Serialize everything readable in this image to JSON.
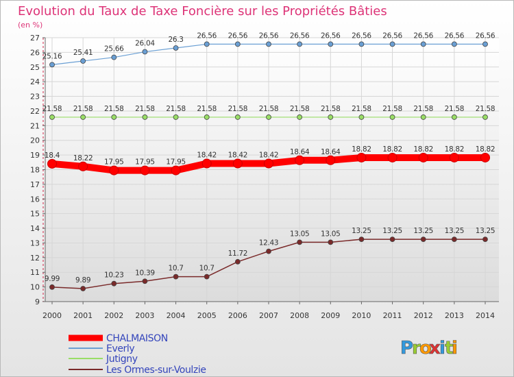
{
  "chart_data": {
    "type": "line",
    "title": "Evolution du Taux de Taxe Foncière sur les Propriétés Bâties",
    "subtitle": "(en %)",
    "x": [
      "2000",
      "2001",
      "2002",
      "2003",
      "2004",
      "2005",
      "2006",
      "2007",
      "2008",
      "2009",
      "2010",
      "2011",
      "2012",
      "2013",
      "2014"
    ],
    "yticks": [
      9,
      10,
      11,
      12,
      13,
      14,
      15,
      16,
      17,
      18,
      19,
      20,
      21,
      22,
      23,
      24,
      25,
      26,
      27
    ],
    "ylim": [
      9,
      27
    ],
    "grid": true,
    "legend_position": "bottom-left",
    "series": [
      {
        "name": "CHALMAISON",
        "color": "#ff0000",
        "labels": [
          "18.4",
          "18.22",
          "17.95",
          "17.95",
          "17.95",
          "18.42",
          "18.42",
          "18.42",
          "18.64",
          "18.64",
          "18.82",
          "18.82",
          "18.82",
          "18.82",
          "18.82"
        ],
        "values": [
          18.4,
          18.22,
          17.95,
          17.95,
          17.95,
          18.42,
          18.42,
          18.42,
          18.64,
          18.64,
          18.82,
          18.82,
          18.82,
          18.82,
          18.82
        ]
      },
      {
        "name": "Everly",
        "color": "#6a9fd4",
        "labels": [
          "25.16",
          "25.41",
          "25.66",
          "26.04",
          "26.3",
          "26.56",
          "26.56",
          "26.56",
          "26.56",
          "26.56",
          "26.56",
          "26.56",
          "26.56",
          "26.56",
          "26.56"
        ],
        "values": [
          25.16,
          25.41,
          25.66,
          26.04,
          26.3,
          26.56,
          26.56,
          26.56,
          26.56,
          26.56,
          26.56,
          26.56,
          26.56,
          26.56,
          26.56
        ]
      },
      {
        "name": "Jutigny",
        "color": "#99dd66",
        "labels": [
          "21.58",
          "21.58",
          "21.58",
          "21.58",
          "21.58",
          "21.58",
          "21.58",
          "21.58",
          "21.58",
          "21.58",
          "21.58",
          "21.58",
          "21.58",
          "21.58",
          "21.58"
        ],
        "values": [
          21.58,
          21.58,
          21.58,
          21.58,
          21.58,
          21.58,
          21.58,
          21.58,
          21.58,
          21.58,
          21.58,
          21.58,
          21.58,
          21.58,
          21.58
        ]
      },
      {
        "name": "Les Ormes-sur-Voulzie",
        "color": "#7a2a2a",
        "labels": [
          "9.99",
          "9.89",
          "10.23",
          "10.39",
          "10.7",
          "10.7",
          "11.72",
          "12.43",
          "13.05",
          "13.05",
          "13.25",
          "13.25",
          "13.25",
          "13.25",
          "13.25"
        ],
        "values": [
          9.99,
          9.89,
          10.23,
          10.39,
          10.7,
          10.7,
          11.72,
          12.43,
          13.05,
          13.05,
          13.25,
          13.25,
          13.25,
          13.25,
          13.25
        ]
      }
    ]
  },
  "brand": {
    "letters": [
      "P",
      "r",
      "o",
      "x",
      "i",
      "t",
      "i"
    ],
    "colors": [
      "#3399dd",
      "#99cc33",
      "#ff9900",
      "#dd3333",
      "#3399dd",
      "#99cc33",
      "#ff9900"
    ]
  }
}
